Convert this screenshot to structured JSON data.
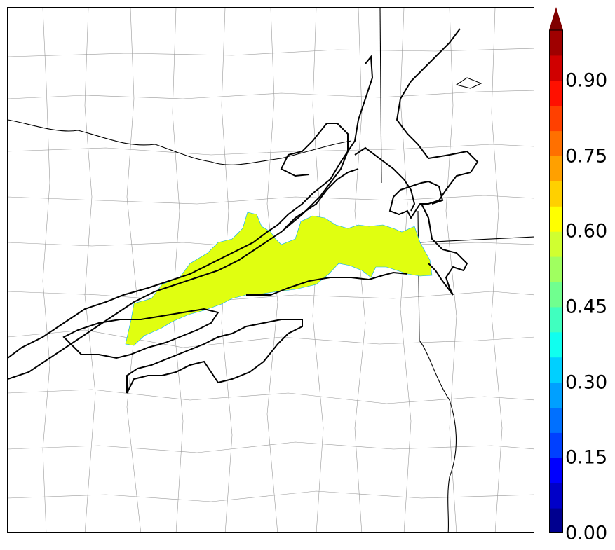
{
  "colorbar": {
    "tick_labels": [
      "0.00",
      "0.15",
      "0.30",
      "0.45",
      "0.60",
      "0.75",
      "0.90"
    ],
    "tick_values": [
      0.0,
      0.15,
      0.3,
      0.45,
      0.6,
      0.75,
      0.9
    ],
    "range": [
      0.0,
      1.0
    ],
    "extend": "max",
    "colors": [
      "#00008f",
      "#0000c8",
      "#0000ff",
      "#0040ff",
      "#0070ff",
      "#00a0ff",
      "#00d0ff",
      "#10ffef",
      "#40ffbf",
      "#70ff8f",
      "#a0ff60",
      "#d0ff30",
      "#ffff00",
      "#ffd000",
      "#ffa000",
      "#ff7000",
      "#ff4000",
      "#ff1000",
      "#d00000",
      "#9f0000"
    ],
    "extend_color": "#800000"
  },
  "map": {
    "shaded_region_value": 0.6,
    "shaded_region_color": "#e0ff10",
    "contour_color": "#000000",
    "county_line_color": "#999999"
  }
}
